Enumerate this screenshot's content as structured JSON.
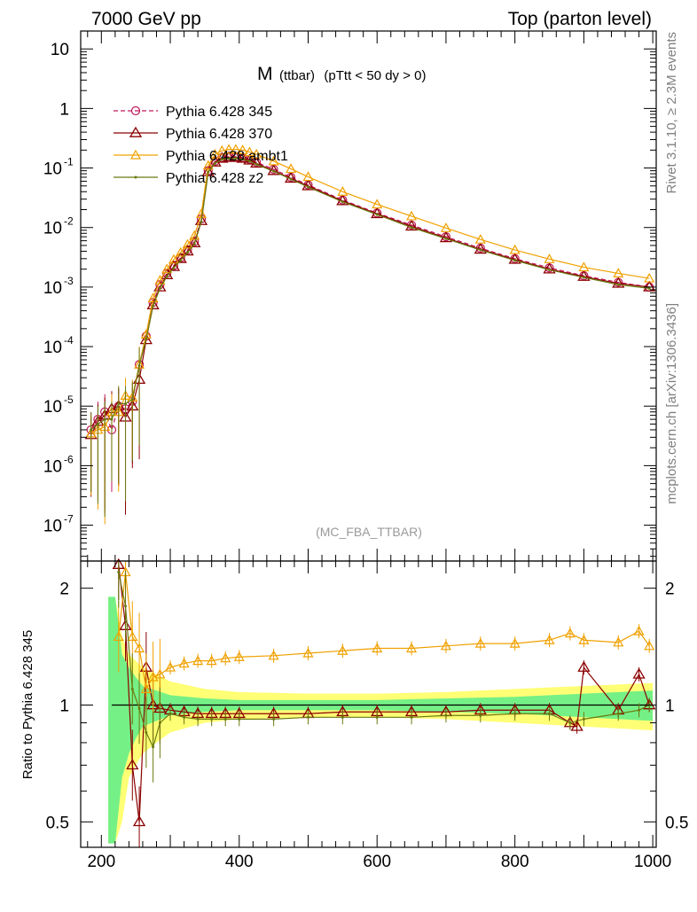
{
  "header": {
    "left": "7000 GeV pp",
    "right": "Top (parton level)"
  },
  "plot_title": {
    "main": "M",
    "sub": "(ttbar)",
    "cut": "(pTtt < 50 dy > 0)"
  },
  "watermark": "(MC_FBA_TTBAR)",
  "side_text": {
    "rivet": "Rivet 3.1.10, ≥ 2.3M events",
    "site": "mcplots.cern.ch [arXiv:1306.3436]"
  },
  "ratio_ylabel": "Ratio to Pythia 6.428 345",
  "colors": {
    "p345": "#c2185b",
    "p370": "#8b0000",
    "ambt1": "#f0a000",
    "z2": "#6b7a10",
    "band_green": "#66ee88",
    "band_yellow": "#ffff66"
  },
  "chart_data": [
    {
      "type": "line",
      "title": "M (ttbar) (pTtt < 50 dy > 0)",
      "xlabel": "",
      "ylabel": "",
      "xlim": [
        170,
        1005
      ],
      "ylim": [
        2.5e-08,
        20
      ],
      "log_y": true,
      "legend_position": "top-left",
      "x_ticks": [
        200,
        400,
        600,
        800,
        1000
      ],
      "x_tick_labels": [
        "200",
        "400",
        "600",
        "800",
        "1000"
      ],
      "y_tick_labels": [
        "10",
        "1",
        "10^-1",
        "10^-2",
        "10^-3",
        "10^-4",
        "10^-5",
        "10^-6",
        "10^-7"
      ],
      "series": [
        {
          "name": "Pythia 6.428 345",
          "x": [
            185,
            195,
            205,
            215,
            225,
            235,
            245,
            255,
            265,
            275,
            285,
            295,
            305,
            315,
            325,
            335,
            345,
            355,
            365,
            375,
            385,
            395,
            405,
            415,
            425,
            450,
            475,
            500,
            550,
            600,
            650,
            700,
            750,
            800,
            850,
            900,
            950,
            995
          ],
          "y": [
            4e-06,
            6e-06,
            8e-06,
            4e-06,
            1e-05,
            9e-06,
            1.2e-05,
            5e-05,
            0.00015,
            0.00055,
            0.0011,
            0.0017,
            0.0023,
            0.0031,
            0.0042,
            0.0058,
            0.014,
            0.09,
            0.13,
            0.15,
            0.155,
            0.155,
            0.15,
            0.14,
            0.125,
            0.095,
            0.07,
            0.052,
            0.029,
            0.0175,
            0.011,
            0.007,
            0.0045,
            0.003,
            0.0021,
            0.00155,
            0.0012,
            0.001
          ]
        },
        {
          "name": "Pythia 6.428 370",
          "x": [
            185,
            195,
            205,
            215,
            225,
            235,
            245,
            255,
            265,
            275,
            285,
            295,
            305,
            315,
            325,
            335,
            345,
            355,
            365,
            375,
            385,
            395,
            405,
            415,
            425,
            450,
            475,
            500,
            550,
            600,
            650,
            700,
            750,
            800,
            850,
            900,
            950,
            995
          ],
          "y": [
            3.3e-06,
            5.5e-06,
            7e-06,
            9e-06,
            1e-05,
            6.5e-06,
            1e-05,
            2.8e-05,
            0.00013,
            0.0005,
            0.001,
            0.0016,
            0.0022,
            0.003,
            0.004,
            0.0055,
            0.013,
            0.086,
            0.125,
            0.145,
            0.15,
            0.15,
            0.145,
            0.135,
            0.12,
            0.09,
            0.067,
            0.05,
            0.028,
            0.017,
            0.0105,
            0.0067,
            0.0043,
            0.0029,
            0.002,
            0.0015,
            0.00115,
            0.001
          ]
        },
        {
          "name": "Pythia 6.428 ambt1",
          "x": [
            185,
            195,
            205,
            215,
            225,
            235,
            245,
            255,
            265,
            275,
            285,
            295,
            305,
            315,
            325,
            335,
            345,
            355,
            365,
            375,
            385,
            395,
            405,
            415,
            425,
            450,
            475,
            500,
            550,
            600,
            650,
            700,
            750,
            800,
            850,
            900,
            950,
            995
          ],
          "y": [
            3.5e-06,
            4e-06,
            4.5e-06,
            8e-06,
            8e-06,
            1.5e-05,
            1.4e-05,
            5e-05,
            0.00016,
            0.00065,
            0.0013,
            0.002,
            0.0029,
            0.0038,
            0.0052,
            0.0073,
            0.017,
            0.11,
            0.17,
            0.195,
            0.205,
            0.205,
            0.2,
            0.185,
            0.17,
            0.13,
            0.097,
            0.071,
            0.04,
            0.0245,
            0.0155,
            0.0098,
            0.0063,
            0.0042,
            0.00295,
            0.00215,
            0.0017,
            0.0014
          ]
        },
        {
          "name": "Pythia 6.428 z2",
          "x": [
            185,
            195,
            205,
            215,
            225,
            235,
            245,
            255,
            265,
            275,
            285,
            295,
            305,
            315,
            325,
            335,
            345,
            355,
            365,
            375,
            385,
            395,
            405,
            415,
            425,
            450,
            475,
            500,
            550,
            600,
            650,
            700,
            750,
            800,
            850,
            900,
            950,
            995
          ],
          "y": [
            4e-06,
            5e-06,
            6e-06,
            6e-06,
            1.1e-05,
            1.1e-05,
            1.3e-05,
            4.8e-05,
            0.000135,
            0.00048,
            0.00095,
            0.0015,
            0.0021,
            0.0028,
            0.0038,
            0.0053,
            0.0125,
            0.085,
            0.12,
            0.14,
            0.145,
            0.145,
            0.14,
            0.13,
            0.115,
            0.088,
            0.065,
            0.048,
            0.027,
            0.0165,
            0.01,
            0.0065,
            0.0042,
            0.0028,
            0.00195,
            0.00145,
            0.0011,
            0.00095
          ]
        }
      ]
    },
    {
      "type": "line",
      "title": "",
      "xlabel": "",
      "ylabel": "Ratio to Pythia 6.428 345",
      "xlim": [
        170,
        1005
      ],
      "ylim": [
        0.43,
        2.35
      ],
      "log_y": true,
      "x_ticks": [
        200,
        400,
        600,
        800,
        1000
      ],
      "x_tick_labels": [
        "200",
        "400",
        "600",
        "800",
        "1000"
      ],
      "y_ticks": [
        0.5,
        1,
        2
      ],
      "y_tick_labels": [
        "0.5",
        "1",
        "2"
      ],
      "series": [
        {
          "name": "Pythia 6.428 345",
          "x": [
            215,
            1000
          ],
          "y": [
            1,
            1
          ]
        },
        {
          "name": "Pythia 6.428 370",
          "x": [
            225,
            235,
            245,
            255,
            265,
            275,
            285,
            300,
            320,
            340,
            360,
            380,
            400,
            450,
            500,
            550,
            600,
            650,
            700,
            750,
            800,
            850,
            880,
            890,
            900,
            950,
            980,
            995
          ],
          "y": [
            2.3,
            1.6,
            0.7,
            0.5,
            1.25,
            1.0,
            0.98,
            0.97,
            0.96,
            0.95,
            0.95,
            0.95,
            0.95,
            0.95,
            0.95,
            0.96,
            0.96,
            0.96,
            0.96,
            0.97,
            0.97,
            0.97,
            0.9,
            0.88,
            1.25,
            0.97,
            1.2,
            1.0
          ]
        },
        {
          "name": "Pythia 6.428 ambt1",
          "x": [
            225,
            235,
            245,
            255,
            265,
            275,
            285,
            300,
            320,
            340,
            360,
            380,
            400,
            450,
            500,
            550,
            600,
            650,
            700,
            750,
            800,
            850,
            880,
            900,
            950,
            980,
            995
          ],
          "y": [
            1.5,
            2.2,
            1.5,
            1.4,
            1.1,
            1.18,
            1.2,
            1.25,
            1.28,
            1.3,
            1.3,
            1.32,
            1.33,
            1.34,
            1.36,
            1.38,
            1.4,
            1.4,
            1.42,
            1.44,
            1.44,
            1.47,
            1.53,
            1.47,
            1.45,
            1.55,
            1.42
          ]
        },
        {
          "name": "Pythia 6.428 z2",
          "x": [
            225,
            235,
            245,
            255,
            265,
            275,
            285,
            300,
            320,
            340,
            360,
            380,
            400,
            450,
            500,
            550,
            600,
            650,
            700,
            750,
            800,
            850,
            880,
            900,
            950,
            980,
            995
          ],
          "y": [
            2.2,
            1.8,
            1.1,
            0.98,
            0.85,
            0.78,
            0.9,
            0.95,
            0.93,
            0.92,
            0.92,
            0.92,
            0.92,
            0.92,
            0.93,
            0.93,
            0.93,
            0.93,
            0.94,
            0.94,
            0.95,
            0.95,
            0.9,
            0.92,
            0.95,
            0.97,
            1.0
          ]
        }
      ]
    }
  ]
}
